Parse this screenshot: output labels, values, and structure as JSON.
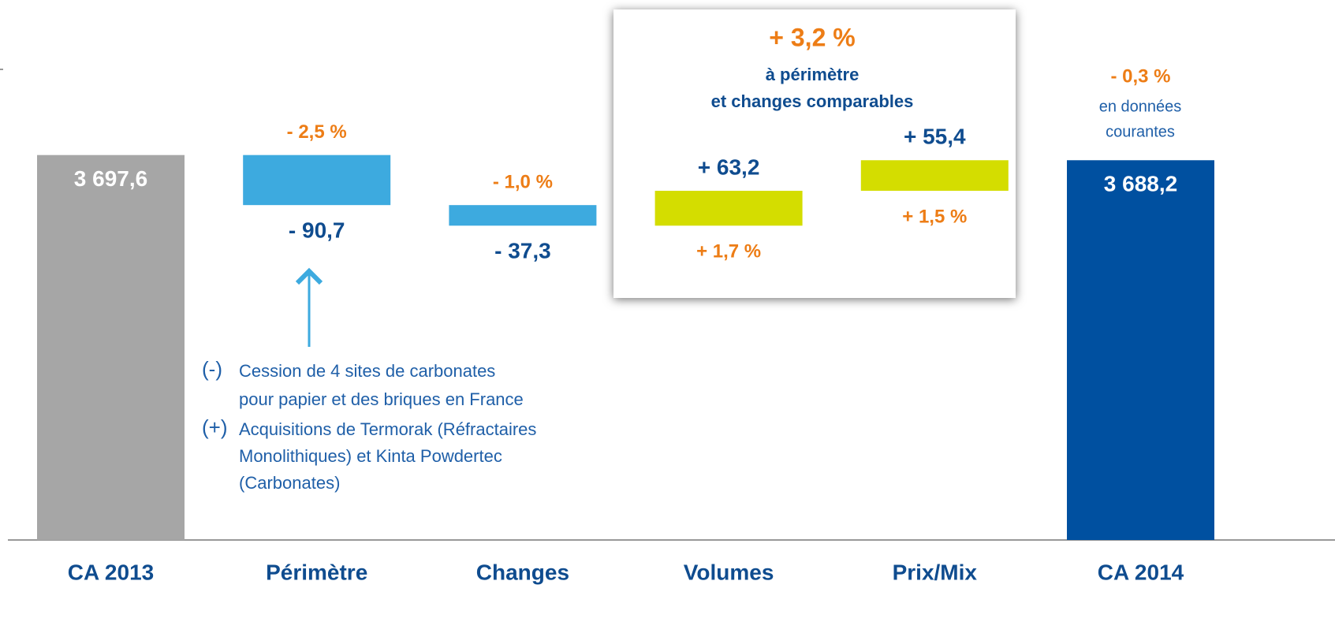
{
  "chart_data": {
    "type": "waterfall",
    "categories": [
      "CA 2013",
      "Périmètre",
      "Changes",
      "Volumes",
      "Prix/Mix",
      "CA 2014"
    ],
    "values": [
      3697.6,
      -90.7,
      -37.3,
      63.2,
      55.4,
      3688.2
    ],
    "value_labels": [
      "3 697,6",
      "- 90,7",
      "- 37,3",
      "+ 63,2",
      "+ 55,4",
      "3 688,2"
    ],
    "percent_labels": [
      null,
      "- 2,5 %",
      "- 1,0 %",
      "+ 1,7 %",
      "+ 1,5 %",
      "- 0,3 %"
    ],
    "colors": [
      "#a6a6a6",
      "#3daadf",
      "#3daadf",
      "#d4dd00",
      "#d4dd00",
      "#0050a0"
    ],
    "ylim": [
      3000,
      3750
    ],
    "box": {
      "headline": "+ 3,2 %",
      "lines": [
        "à périmètre",
        "et changes comparables"
      ]
    },
    "final_note": [
      "en données",
      "courantes"
    ],
    "note": {
      "minus": "(-)",
      "minus_lines": [
        "Cession de 4 sites de carbonates",
        "pour papier et des briques en France"
      ],
      "plus": "(+)",
      "plus_lines": [
        "Acquisitions de Termorak (Réfractaires",
        "Monolithiques) et Kinta Powdertec",
        "(Carbonates)"
      ]
    }
  }
}
